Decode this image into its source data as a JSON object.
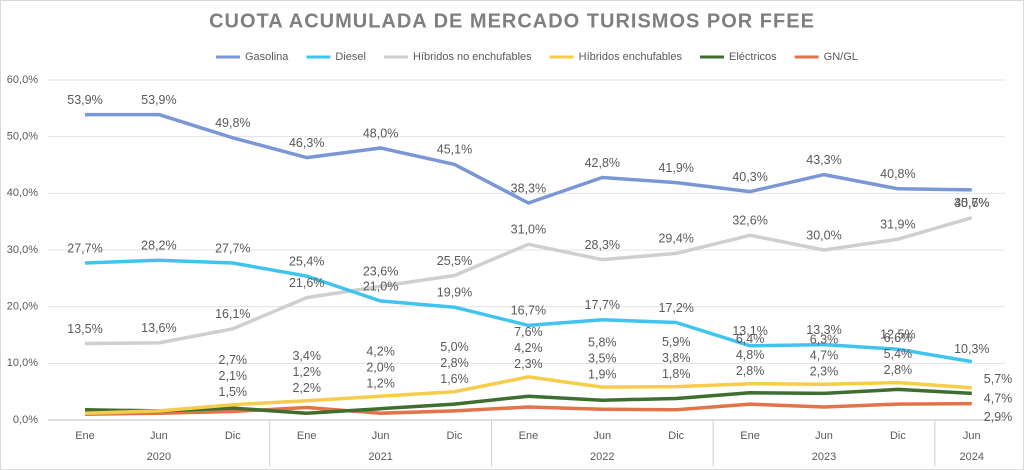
{
  "chart_data": {
    "type": "line",
    "title": "CUOTA ACUMULADA DE MERCADO TURISMOS POR FFEE",
    "categories": [
      {
        "month": "Ene",
        "year": "2020"
      },
      {
        "month": "Jun",
        "year": "2020"
      },
      {
        "month": "Dic",
        "year": "2020"
      },
      {
        "month": "Ene",
        "year": "2021"
      },
      {
        "month": "Jun",
        "year": "2021"
      },
      {
        "month": "Dic",
        "year": "2021"
      },
      {
        "month": "Ene",
        "year": "2022"
      },
      {
        "month": "Jun",
        "year": "2022"
      },
      {
        "month": "Dic",
        "year": "2022"
      },
      {
        "month": "Ene",
        "year": "2023"
      },
      {
        "month": "Jun",
        "year": "2023"
      },
      {
        "month": "Dic",
        "year": "2023"
      },
      {
        "month": "Jun",
        "year": "2024"
      }
    ],
    "series": [
      {
        "name": "Gasolina",
        "color": "#7b96d6",
        "label_color": "#4a70c4",
        "values": [
          53.9,
          53.9,
          49.8,
          46.3,
          48.0,
          45.1,
          38.3,
          42.8,
          41.9,
          40.3,
          43.3,
          40.8,
          40.6
        ],
        "value_labels": [
          "53,9%",
          "53,9%",
          "49,8%",
          "46,3%",
          "48,0%",
          "45,1%",
          "38,3%",
          "42,8%",
          "41,9%",
          "40,3%",
          "43,3%",
          "40,8%",
          "40,6%"
        ]
      },
      {
        "name": "Diesel",
        "color": "#40c4ee",
        "label_color": "#1aa9dc",
        "values": [
          27.7,
          28.2,
          27.7,
          25.4,
          21.0,
          19.9,
          16.7,
          17.7,
          17.2,
          13.1,
          13.3,
          12.5,
          10.3
        ],
        "value_labels": [
          "27,7%",
          "28,2%",
          "27,7%",
          "25,4%",
          "21,0%",
          "19,9%",
          "16,7%",
          "17,7%",
          "17,2%",
          "13,1%",
          "13,3%",
          "12,5%",
          "10,3%"
        ]
      },
      {
        "name": "Híbridos no enchufables",
        "color": "#cfcfcf",
        "label_color": "#7f7f7f",
        "values": [
          13.5,
          13.6,
          16.1,
          21.6,
          23.6,
          25.5,
          31.0,
          28.3,
          29.4,
          32.6,
          30.0,
          31.9,
          35.7
        ],
        "value_labels": [
          "13,5%",
          "13,6%",
          "16,1%",
          "21,6%",
          "23,6%",
          "25,5%",
          "31,0%",
          "28,3%",
          "29,4%",
          "32,6%",
          "30,0%",
          "31,9%",
          "35,7%"
        ]
      },
      {
        "name": "Híbridos enchufables",
        "color": "#f6cd4a",
        "label_color": "#c4981a",
        "values": [
          1.2,
          1.6,
          2.7,
          3.4,
          4.2,
          5.0,
          7.6,
          5.8,
          5.9,
          6.4,
          6.3,
          6.6,
          5.7
        ],
        "value_labels": [
          null,
          null,
          "2,7%",
          "3,4%",
          "4,2%",
          "5,0%",
          "7,6%",
          "5,8%",
          "5,9%",
          "6,4%",
          "6,3%",
          "6,6%",
          "5,7%"
        ]
      },
      {
        "name": "Eléctricos",
        "color": "#3f6e30",
        "label_color": "#5e8c3a",
        "values": [
          1.8,
          1.6,
          2.1,
          1.2,
          2.0,
          2.8,
          4.2,
          3.5,
          3.8,
          4.8,
          4.7,
          5.4,
          4.7
        ],
        "value_labels": [
          null,
          null,
          "2,1%",
          "1,2%",
          "2,0%",
          "2,8%",
          "4,2%",
          "3,5%",
          "3,8%",
          "4,8%",
          "4,7%",
          "5,4%",
          "4,7%"
        ]
      },
      {
        "name": "GN/GL",
        "color": "#e2744c",
        "label_color": "#c8201e",
        "values": [
          1.0,
          1.2,
          1.5,
          2.2,
          1.2,
          1.6,
          2.3,
          1.9,
          1.8,
          2.8,
          2.3,
          2.8,
          2.9
        ],
        "value_labels": [
          null,
          null,
          "1,5%",
          "2,2%",
          "1,2%",
          "1,6%",
          "2,3%",
          "1,9%",
          "1,8%",
          "2,8%",
          "2,3%",
          "2,8%",
          "2,9%"
        ]
      }
    ],
    "ylim": [
      0,
      60
    ],
    "yticks": [
      {
        "value": 0,
        "label": "0,0%"
      },
      {
        "value": 10,
        "label": "10,0%"
      },
      {
        "value": 20,
        "label": "20,0%"
      },
      {
        "value": 30,
        "label": "30,0%"
      },
      {
        "value": 40,
        "label": "40,0%"
      },
      {
        "value": 50,
        "label": "50,0%"
      },
      {
        "value": 60,
        "label": "60,0%"
      }
    ],
    "grid": true
  }
}
